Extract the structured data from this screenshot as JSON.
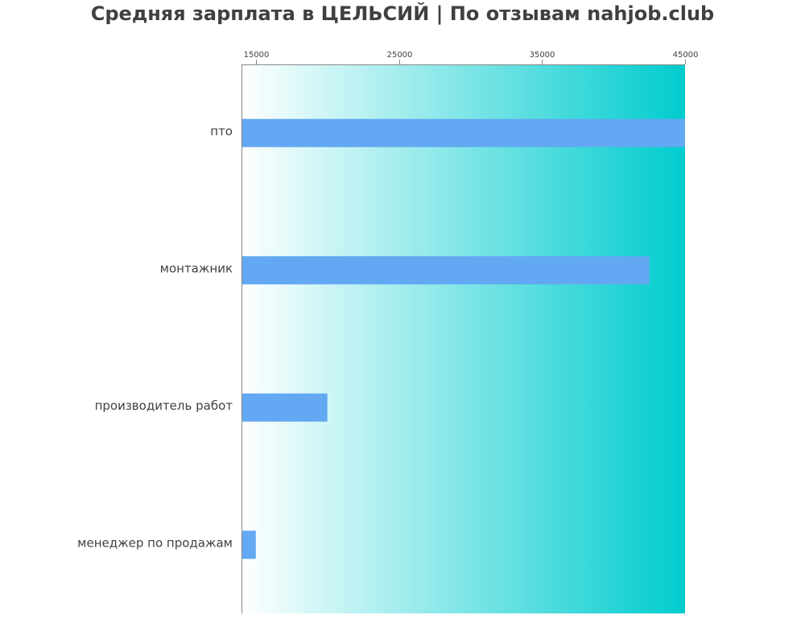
{
  "chart_data": {
    "type": "bar",
    "orientation": "horizontal",
    "title": "Средняя зарплата в ЦЕЛЬСИЙ | По отзывам nahjob.club",
    "xlabel": "",
    "ylabel": "",
    "xlim": [
      14000,
      45000
    ],
    "x_ticks": [
      15000,
      25000,
      35000,
      45000
    ],
    "x_axis_position": "top",
    "grid": false,
    "categories": [
      "пто",
      "монтажник",
      "производитель работ",
      "менеджер по продажам"
    ],
    "values": [
      45000,
      42500,
      20000,
      15000
    ],
    "colors": {
      "bar": "#63a8f2",
      "background_start": "#ffffff",
      "background_end": "#00ccce",
      "text": "#404040",
      "axis": "#888888"
    }
  }
}
